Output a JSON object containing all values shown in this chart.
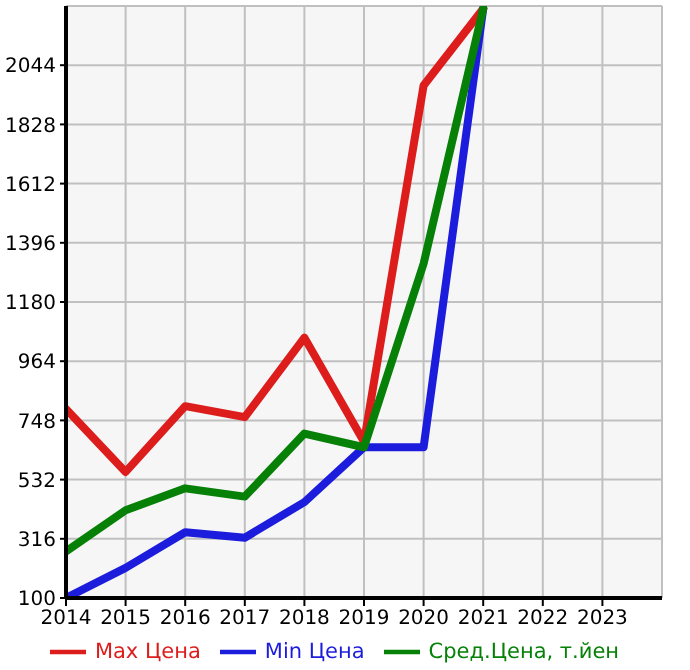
{
  "chart_data": {
    "type": "line",
    "x": [
      2014,
      2015,
      2016,
      2017,
      2018,
      2019,
      2020,
      2021
    ],
    "series": [
      {
        "name": "Max Цена",
        "color": "#dd1c1c",
        "values": [
          790,
          560,
          800,
          760,
          1050,
          670,
          1970,
          2250
        ]
      },
      {
        "name": "Min Цена",
        "color": "#1c1cdd",
        "values": [
          100,
          210,
          340,
          320,
          450,
          650,
          650,
          2250
        ]
      },
      {
        "name": "Сред.Цена, т.йен",
        "color": "#068006",
        "values": [
          270,
          420,
          500,
          470,
          700,
          650,
          1320,
          2250
        ]
      }
    ],
    "xlim": [
      2014,
      2024
    ],
    "xticks": [
      2014,
      2015,
      2016,
      2017,
      2018,
      2019,
      2020,
      2021,
      2022,
      2023
    ],
    "ylim": [
      100,
      2260
    ],
    "yticks": [
      100,
      316,
      532,
      748,
      964,
      1180,
      1396,
      1612,
      1828,
      2044
    ],
    "grid": true,
    "legend": "bottom",
    "marker": "none",
    "line_style": "solid"
  }
}
